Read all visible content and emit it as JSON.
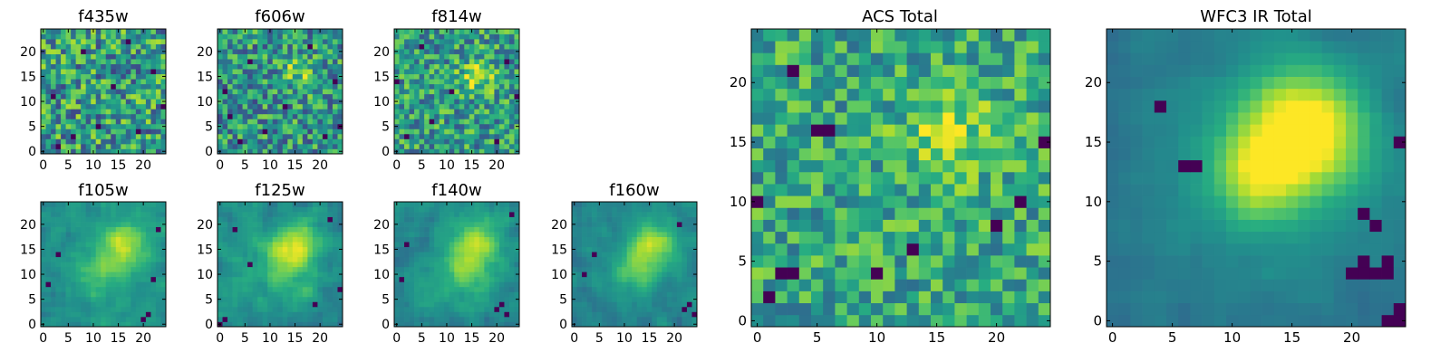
{
  "figure": {
    "colormap": "viridis",
    "colors": {
      "low": "#440154",
      "mid": "#21918c",
      "high": "#fde725",
      "frame": "#000000",
      "background": "#ffffff"
    }
  },
  "chart_data": [
    {
      "id": "f435w",
      "type": "heatmap",
      "title": "f435w",
      "grid_size": 25,
      "xlim": [
        0,
        24
      ],
      "ylim": [
        0,
        24
      ],
      "x_ticks": [
        0,
        5,
        10,
        15,
        20
      ],
      "y_ticks": [
        0,
        5,
        10,
        15,
        20
      ],
      "seed": 11,
      "noise": 0.42,
      "background_level": 0.55,
      "blobs": [],
      "dark_pixels": [
        [
          3,
          1
        ],
        [
          6,
          3
        ],
        [
          11,
          5
        ],
        [
          19,
          4
        ],
        [
          2,
          11
        ],
        [
          14,
          13
        ],
        [
          22,
          16
        ],
        [
          8,
          20
        ],
        [
          17,
          22
        ],
        [
          24,
          9
        ]
      ]
    },
    {
      "id": "f606w",
      "type": "heatmap",
      "title": "f606w",
      "grid_size": 25,
      "xlim": [
        0,
        24
      ],
      "ylim": [
        0,
        24
      ],
      "x_ticks": [
        0,
        5,
        10,
        15,
        20
      ],
      "y_ticks": [
        0,
        5,
        10,
        15,
        20
      ],
      "seed": 23,
      "noise": 0.38,
      "background_level": 0.52,
      "blobs": [
        [
          16,
          16,
          2.5,
          0.25
        ]
      ],
      "dark_pixels": [
        [
          4,
          2
        ],
        [
          9,
          4
        ],
        [
          21,
          3
        ],
        [
          1,
          12
        ],
        [
          13,
          9
        ],
        [
          23,
          14
        ],
        [
          6,
          18
        ],
        [
          18,
          21
        ],
        [
          2,
          7
        ],
        [
          24,
          5
        ]
      ]
    },
    {
      "id": "f814w",
      "type": "heatmap",
      "title": "f814w",
      "grid_size": 25,
      "xlim": [
        0,
        24
      ],
      "ylim": [
        0,
        24
      ],
      "x_ticks": [
        0,
        5,
        10,
        15,
        20
      ],
      "y_ticks": [
        0,
        5,
        10,
        15,
        20
      ],
      "seed": 37,
      "noise": 0.36,
      "background_level": 0.55,
      "blobs": [
        [
          16,
          15,
          2.5,
          0.3
        ]
      ],
      "dark_pixels": [
        [
          2,
          3
        ],
        [
          7,
          6
        ],
        [
          20,
          2
        ],
        [
          0,
          14
        ],
        [
          11,
          12
        ],
        [
          22,
          18
        ],
        [
          5,
          21
        ],
        [
          24,
          11
        ]
      ]
    },
    {
      "id": "f105w",
      "type": "heatmap",
      "title": "f105w",
      "grid_size": 25,
      "xlim": [
        0,
        24
      ],
      "ylim": [
        0,
        24
      ],
      "x_ticks": [
        0,
        5,
        10,
        15,
        20
      ],
      "y_ticks": [
        0,
        5,
        10,
        15,
        20
      ],
      "seed": 41,
      "noise": 0.18,
      "background_level": 0.5,
      "blobs": [
        [
          16,
          16,
          3.5,
          0.35
        ],
        [
          12,
          10,
          4.0,
          0.2
        ]
      ],
      "dark_pixels": [
        [
          20,
          1
        ],
        [
          21,
          2
        ],
        [
          3,
          14
        ],
        [
          23,
          19
        ],
        [
          1,
          8
        ],
        [
          22,
          9
        ]
      ]
    },
    {
      "id": "f125w",
      "type": "heatmap",
      "title": "f125w",
      "grid_size": 25,
      "xlim": [
        0,
        24
      ],
      "ylim": [
        0,
        24
      ],
      "x_ticks": [
        0,
        5,
        10,
        15,
        20
      ],
      "y_ticks": [
        0,
        5,
        10,
        15,
        20
      ],
      "seed": 53,
      "noise": 0.2,
      "background_level": 0.5,
      "blobs": [
        [
          15,
          16,
          3.5,
          0.35
        ],
        [
          13,
          11,
          4.0,
          0.2
        ]
      ],
      "dark_pixels": [
        [
          0,
          0
        ],
        [
          1,
          1
        ],
        [
          6,
          12
        ],
        [
          22,
          21
        ],
        [
          19,
          4
        ],
        [
          24,
          7
        ],
        [
          3,
          19
        ]
      ]
    },
    {
      "id": "f140w",
      "type": "heatmap",
      "title": "f140w",
      "grid_size": 25,
      "xlim": [
        0,
        24
      ],
      "ylim": [
        0,
        24
      ],
      "x_ticks": [
        0,
        5,
        10,
        15,
        20
      ],
      "y_ticks": [
        0,
        5,
        10,
        15,
        20
      ],
      "seed": 67,
      "noise": 0.18,
      "background_level": 0.48,
      "blobs": [
        [
          16,
          16,
          3.5,
          0.38
        ],
        [
          13,
          10,
          4.0,
          0.22
        ]
      ],
      "dark_pixels": [
        [
          20,
          3
        ],
        [
          21,
          4
        ],
        [
          22,
          2
        ],
        [
          2,
          16
        ],
        [
          23,
          22
        ],
        [
          1,
          9
        ]
      ]
    },
    {
      "id": "f160w",
      "type": "heatmap",
      "title": "f160w",
      "grid_size": 25,
      "xlim": [
        0,
        24
      ],
      "ylim": [
        0,
        24
      ],
      "x_ticks": [
        0,
        5,
        10,
        15,
        20
      ],
      "y_ticks": [
        0,
        5,
        10,
        15,
        20
      ],
      "seed": 79,
      "noise": 0.16,
      "background_level": 0.46,
      "blobs": [
        [
          16,
          16,
          3.0,
          0.42
        ],
        [
          12,
          11,
          3.5,
          0.28
        ]
      ],
      "dark_pixels": [
        [
          22,
          3
        ],
        [
          23,
          4
        ],
        [
          24,
          2
        ],
        [
          4,
          14
        ],
        [
          21,
          20
        ],
        [
          2,
          10
        ]
      ]
    },
    {
      "id": "acs_total",
      "type": "heatmap",
      "title": "ACS Total",
      "grid_size": 25,
      "xlim": [
        0,
        24
      ],
      "ylim": [
        0,
        24
      ],
      "x_ticks": [
        0,
        5,
        10,
        15,
        20
      ],
      "y_ticks": [
        0,
        5,
        10,
        15,
        20
      ],
      "seed": 97,
      "noise": 0.3,
      "background_level": 0.6,
      "blobs": [
        [
          16,
          16,
          2.5,
          0.3
        ]
      ],
      "dark_pixels": [
        [
          3,
          21
        ],
        [
          5,
          16
        ],
        [
          6,
          16
        ],
        [
          24,
          15
        ],
        [
          0,
          10
        ],
        [
          2,
          4
        ],
        [
          3,
          4
        ],
        [
          10,
          4
        ],
        [
          13,
          6
        ],
        [
          20,
          8
        ],
        [
          1,
          2
        ],
        [
          22,
          10
        ]
      ]
    },
    {
      "id": "wfc3_ir_total",
      "type": "heatmap",
      "title": "WFC3 IR Total",
      "grid_size": 25,
      "xlim": [
        0,
        24
      ],
      "ylim": [
        0,
        24
      ],
      "x_ticks": [
        0,
        5,
        10,
        15,
        20
      ],
      "y_ticks": [
        0,
        5,
        10,
        15,
        20
      ],
      "seed": 113,
      "noise": 0.08,
      "background_level": 0.38,
      "blobs": [
        [
          16,
          16,
          3.5,
          0.62
        ],
        [
          12,
          12,
          2.5,
          0.3
        ],
        [
          13,
          13,
          7.0,
          0.18
        ]
      ],
      "dark_pixels": [
        [
          6,
          13
        ],
        [
          7,
          13
        ],
        [
          4,
          18
        ],
        [
          20,
          4
        ],
        [
          21,
          4
        ],
        [
          22,
          4
        ],
        [
          23,
          4
        ],
        [
          23,
          5
        ],
        [
          21,
          5
        ],
        [
          23,
          0
        ],
        [
          24,
          0
        ],
        [
          24,
          1
        ],
        [
          22,
          8
        ],
        [
          21,
          9
        ],
        [
          24,
          15
        ]
      ]
    }
  ]
}
